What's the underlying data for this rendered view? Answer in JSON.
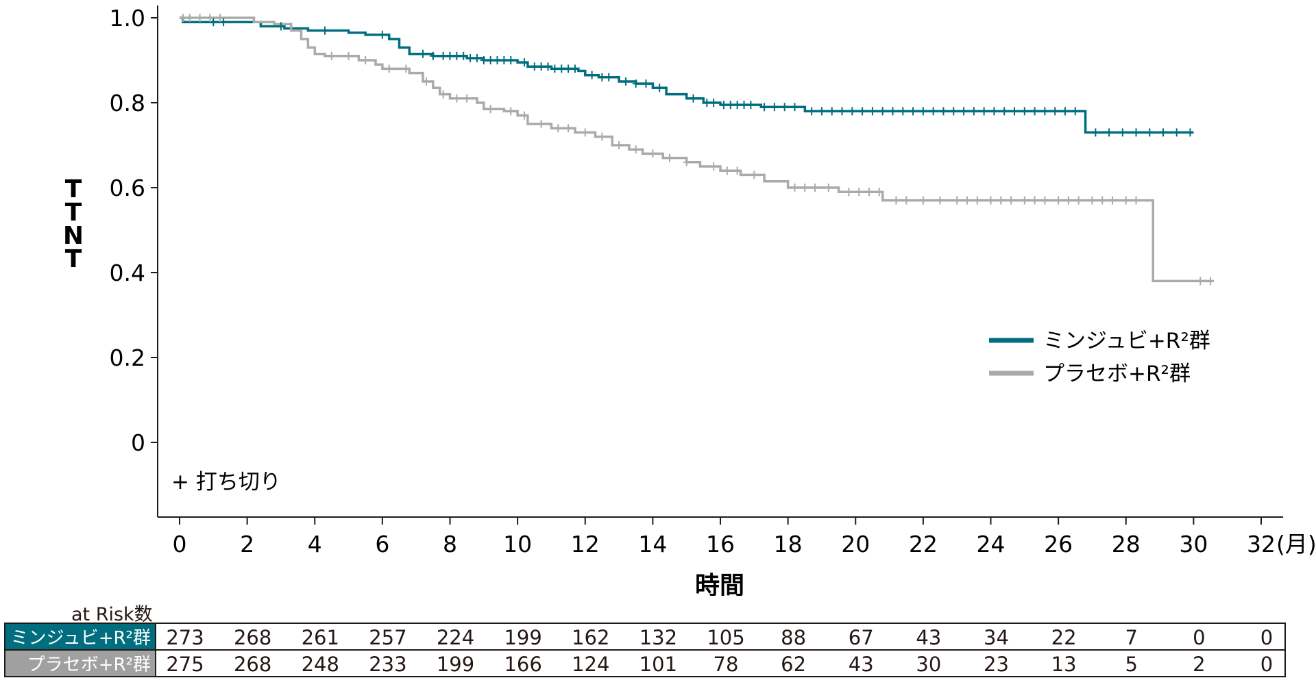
{
  "chart_data": {
    "type": "line",
    "subtype": "kaplan-meier",
    "ylabel": "TTNT",
    "xlabel": "時間",
    "x_unit": "(月)",
    "xlim": [
      0,
      32
    ],
    "ylim": [
      0,
      1.0
    ],
    "x_ticks": [
      "0",
      "2",
      "4",
      "6",
      "8",
      "10",
      "12",
      "14",
      "16",
      "18",
      "20",
      "22",
      "24",
      "26",
      "28",
      "30",
      "32"
    ],
    "y_ticks": [
      "0",
      "0.2",
      "0.4",
      "0.6",
      "0.8",
      "1.0"
    ],
    "censor_note": "+ 打ち切り",
    "legend_position": "right",
    "series": [
      {
        "name": "ミンジュビ+R²群",
        "color": "#006e7f",
        "steps": [
          [
            0,
            1.0
          ],
          [
            0.1,
            0.99
          ],
          [
            2.4,
            0.98
          ],
          [
            3.1,
            0.975
          ],
          [
            3.8,
            0.97
          ],
          [
            5,
            0.965
          ],
          [
            5.5,
            0.96
          ],
          [
            6.2,
            0.95
          ],
          [
            6.5,
            0.93
          ],
          [
            6.8,
            0.915
          ],
          [
            7.5,
            0.91
          ],
          [
            8.5,
            0.905
          ],
          [
            9,
            0.9
          ],
          [
            10,
            0.895
          ],
          [
            10.3,
            0.885
          ],
          [
            11,
            0.88
          ],
          [
            11.8,
            0.875
          ],
          [
            12,
            0.865
          ],
          [
            12.4,
            0.86
          ],
          [
            13,
            0.85
          ],
          [
            13.5,
            0.845
          ],
          [
            14,
            0.835
          ],
          [
            14.4,
            0.82
          ],
          [
            15,
            0.81
          ],
          [
            15.5,
            0.8
          ],
          [
            16,
            0.795
          ],
          [
            17.2,
            0.79
          ],
          [
            18.5,
            0.78
          ],
          [
            26.8,
            0.73
          ],
          [
            30,
            0.73
          ]
        ],
        "censor_x": [
          1,
          1.3,
          3,
          4.3,
          6,
          7.2,
          7.5,
          7.8,
          8,
          8.2,
          8.4,
          8.6,
          8.8,
          9,
          9.2,
          9.4,
          9.6,
          9.8,
          10.2,
          10.5,
          10.7,
          10.9,
          11.1,
          11.3,
          11.5,
          11.7,
          12.2,
          12.5,
          12.7,
          13.2,
          13.5,
          13.8,
          14.2,
          15.2,
          15.6,
          15.8,
          16.1,
          16.3,
          16.5,
          16.7,
          16.9,
          17.3,
          17.6,
          17.9,
          18.2,
          18.7,
          19,
          19.3,
          19.6,
          19.9,
          20.2,
          20.5,
          20.8,
          21.1,
          21.4,
          21.7,
          22,
          22.3,
          22.6,
          22.9,
          23.2,
          23.5,
          23.8,
          24.1,
          24.4,
          24.7,
          25,
          25.3,
          25.6,
          25.9,
          26.2,
          26.5,
          27.1,
          27.5,
          27.9,
          28.3,
          28.7,
          29.1,
          29.5,
          29.9
        ]
      },
      {
        "name": "プラセボ+R²群",
        "color": "#aaaaaa",
        "steps": [
          [
            0,
            1.0
          ],
          [
            2.2,
            0.99
          ],
          [
            2.8,
            0.985
          ],
          [
            3.3,
            0.97
          ],
          [
            3.6,
            0.95
          ],
          [
            3.8,
            0.93
          ],
          [
            4,
            0.915
          ],
          [
            4.3,
            0.91
          ],
          [
            5.3,
            0.9
          ],
          [
            5.8,
            0.89
          ],
          [
            6,
            0.88
          ],
          [
            6.8,
            0.87
          ],
          [
            7.2,
            0.85
          ],
          [
            7.5,
            0.835
          ],
          [
            7.7,
            0.82
          ],
          [
            8,
            0.81
          ],
          [
            8.8,
            0.8
          ],
          [
            9,
            0.785
          ],
          [
            9.6,
            0.78
          ],
          [
            10,
            0.77
          ],
          [
            10.3,
            0.75
          ],
          [
            11,
            0.74
          ],
          [
            11.7,
            0.73
          ],
          [
            12.3,
            0.72
          ],
          [
            12.8,
            0.7
          ],
          [
            13.3,
            0.69
          ],
          [
            13.7,
            0.68
          ],
          [
            14.3,
            0.67
          ],
          [
            15,
            0.66
          ],
          [
            15.4,
            0.65
          ],
          [
            16,
            0.64
          ],
          [
            16.6,
            0.63
          ],
          [
            17.3,
            0.615
          ],
          [
            18,
            0.6
          ],
          [
            19.5,
            0.59
          ],
          [
            20.8,
            0.57
          ],
          [
            28.8,
            0.38
          ],
          [
            30.6,
            0.38
          ]
        ],
        "censor_x": [
          0.1,
          0.3,
          0.6,
          0.9,
          1.2,
          4.5,
          5,
          5.5,
          6.2,
          6.7,
          7.3,
          7.8,
          8.2,
          8.5,
          9.2,
          9.8,
          10.2,
          10.7,
          11.2,
          11.5,
          12,
          12.5,
          13,
          13.5,
          14,
          14.5,
          15,
          15.8,
          16.2,
          16.5,
          17,
          18.2,
          18.5,
          18.8,
          19.2,
          19.8,
          20.1,
          20.4,
          20.7,
          21.2,
          21.5,
          22,
          22.5,
          23,
          23.3,
          23.6,
          24,
          24.3,
          24.6,
          25,
          25.3,
          25.6,
          26,
          26.3,
          26.6,
          27,
          27.3,
          27.6,
          28,
          28.3,
          30.2,
          30.5
        ]
      }
    ],
    "at_risk_x": [
      0,
      2,
      4,
      6,
      8,
      10,
      12,
      14,
      16,
      18,
      20,
      22,
      24,
      26,
      28,
      30,
      32
    ]
  },
  "at_risk": {
    "title": "at Risk数",
    "rows": [
      {
        "label": "ミンジュビ+R²群",
        "color": "#006e7f",
        "values": [
          "273",
          "268",
          "261",
          "257",
          "224",
          "199",
          "162",
          "132",
          "105",
          "88",
          "67",
          "43",
          "34",
          "22",
          "7",
          "0",
          "0"
        ]
      },
      {
        "label": "プラセボ+R²群",
        "color": "#a0a0a0",
        "values": [
          "275",
          "268",
          "248",
          "233",
          "199",
          "166",
          "124",
          "101",
          "78",
          "62",
          "43",
          "30",
          "23",
          "13",
          "5",
          "2",
          "0"
        ]
      }
    ]
  }
}
